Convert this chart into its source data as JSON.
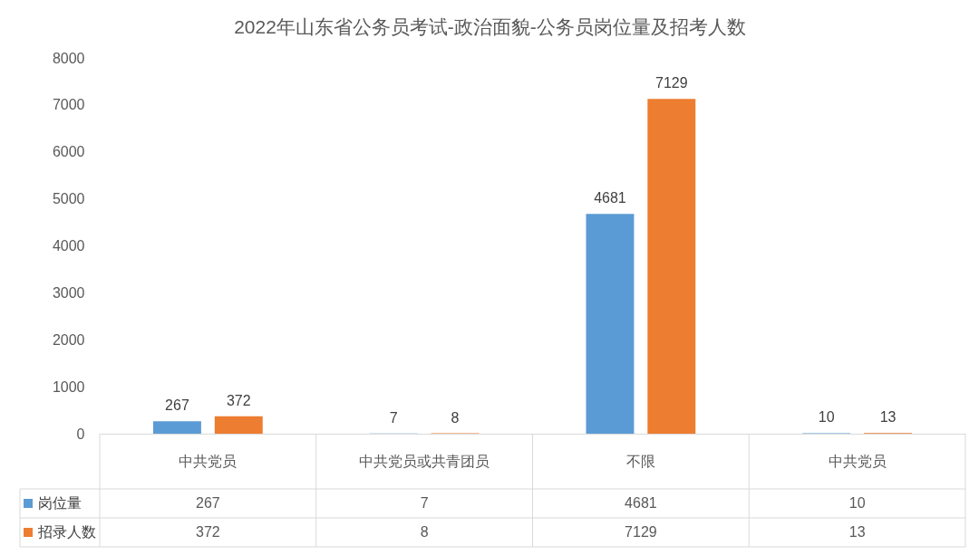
{
  "chart_data": [
    {
      "type": "bar",
      "title": "2022年山东省公务员考试-政治面貌-公务员岗位量及招考人数",
      "categories": [
        null,
        null,
        null,
        null
      ],
      "series": [
        {
          "color": "#5b9bd5",
          "values": [
            267,
            7,
            4681,
            10
          ],
          "value_labels": [
            "267",
            "7",
            "4681",
            "10"
          ]
        },
        {
          "color": "#ed7d31",
          "values": [
            372,
            8,
            7129,
            13
          ],
          "value_labels": [
            "372",
            "8",
            "7129",
            "13"
          ]
        }
      ],
      "ylim": [
        0,
        8000
      ],
      "yticks": [
        0,
        1000,
        2000,
        3000,
        4000,
        5000,
        6000,
        7000,
        8000
      ]
    },
    {
      "type": "other",
      "categories": [
        "中共党员",
        "中共党员或共青团员",
        "不限",
        "中共党员"
      ],
      "series": [
        {
          "name": "岗位量",
          "color": "#5b9bd5",
          "values": [
            267,
            7,
            4681,
            10
          ]
        },
        {
          "name": "招录人数",
          "color": "#ed7d31",
          "values": [
            372,
            8,
            7129,
            13
          ]
        }
      ],
      "data_labels": true,
      "legend": "bottom left"
    }
  ]
}
